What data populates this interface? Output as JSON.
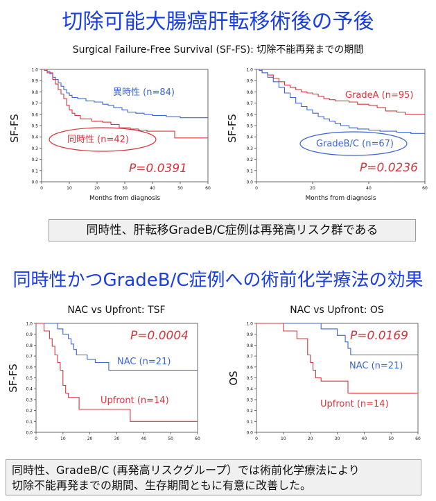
{
  "headings": {
    "main_title": "切除可能大腸癌肝転移術後の予後",
    "main_subtitle": "Surgical Failure-Free Survival (SF-FS): 切除不能再発までの期間",
    "section_title": "同時性かつGradeB/C症例への術前化学療法の効果"
  },
  "notes": {
    "note1": "同時性、肝転移GradeB/C症例は再発高リスク群である",
    "note2_line1": "同時性、GradeB/C (再発高リスクグループ）では術前化学療法により",
    "note2_line2": "切除不能再発までの期間、生存期間ともに有意に改善した。"
  },
  "colors": {
    "blue": "#3a64d8",
    "red": "#d8343c",
    "title_blue": "#1a3fe0"
  },
  "chart_data": [
    {
      "type": "line",
      "step": true,
      "title": "",
      "xlabel": "Months from diagnosis",
      "ylabel": "SF-FS",
      "xlim": [
        0,
        60
      ],
      "ylim": [
        0,
        1
      ],
      "xticks": [
        0,
        10,
        20,
        30,
        40,
        50,
        60
      ],
      "yticks": [
        0.0,
        0.1,
        0.2,
        0.3,
        0.4,
        0.5,
        0.6,
        0.7,
        0.8,
        0.9,
        1.0
      ],
      "pvalue": "P=0.0391",
      "series": [
        {
          "name": "異時性 (n=84)",
          "color": "#3a64d8",
          "circled": false,
          "points": [
            [
              0,
              1.0
            ],
            [
              1,
              0.99
            ],
            [
              2,
              0.98
            ],
            [
              3,
              0.96
            ],
            [
              4,
              0.93
            ],
            [
              5,
              0.91
            ],
            [
              6,
              0.88
            ],
            [
              7,
              0.85
            ],
            [
              8,
              0.82
            ],
            [
              9,
              0.79
            ],
            [
              10,
              0.77
            ],
            [
              11,
              0.75
            ],
            [
              13,
              0.74
            ],
            [
              16,
              0.72
            ],
            [
              19,
              0.71
            ],
            [
              22,
              0.69
            ],
            [
              24,
              0.68
            ],
            [
              26,
              0.66
            ],
            [
              29,
              0.64
            ],
            [
              31,
              0.62
            ],
            [
              34,
              0.61
            ],
            [
              37,
              0.6
            ],
            [
              40,
              0.59
            ],
            [
              45,
              0.58
            ],
            [
              50,
              0.57
            ],
            [
              60,
              0.57
            ]
          ]
        },
        {
          "name": "同時性 (n=42)",
          "color": "#d8343c",
          "circled": true,
          "points": [
            [
              0,
              1.0
            ],
            [
              2,
              0.97
            ],
            [
              4,
              0.91
            ],
            [
              5,
              0.87
            ],
            [
              6,
              0.82
            ],
            [
              7,
              0.78
            ],
            [
              8,
              0.74
            ],
            [
              9,
              0.68
            ],
            [
              10,
              0.64
            ],
            [
              11,
              0.61
            ],
            [
              12,
              0.59
            ],
            [
              14,
              0.56
            ],
            [
              18,
              0.54
            ],
            [
              22,
              0.53
            ],
            [
              25,
              0.51
            ],
            [
              28,
              0.48
            ],
            [
              32,
              0.47
            ],
            [
              35,
              0.46
            ],
            [
              38,
              0.45
            ],
            [
              47,
              0.45
            ],
            [
              48,
              0.39
            ],
            [
              60,
              0.39
            ]
          ]
        }
      ]
    },
    {
      "type": "line",
      "step": true,
      "title": "",
      "xlabel": "Months from diagnosis",
      "ylabel": "SF-FS",
      "xlim": [
        0,
        60
      ],
      "ylim": [
        0,
        1
      ],
      "xticks": [
        0,
        20,
        40,
        60
      ],
      "yticks": [
        0.0,
        0.1,
        0.2,
        0.3,
        0.4,
        0.5,
        0.6,
        0.7,
        0.8,
        0.9,
        1.0
      ],
      "pvalue": "P=0.0236",
      "series": [
        {
          "name": "GradeA (n=95)",
          "color": "#d8343c",
          "circled": false,
          "points": [
            [
              0,
              1.0
            ],
            [
              1,
              0.99
            ],
            [
              2,
              0.97
            ],
            [
              4,
              0.95
            ],
            [
              6,
              0.92
            ],
            [
              8,
              0.89
            ],
            [
              10,
              0.86
            ],
            [
              12,
              0.84
            ],
            [
              14,
              0.82
            ],
            [
              16,
              0.8
            ],
            [
              18,
              0.79
            ],
            [
              20,
              0.78
            ],
            [
              22,
              0.76
            ],
            [
              24,
              0.74
            ],
            [
              26,
              0.73
            ],
            [
              28,
              0.72
            ],
            [
              30,
              0.72
            ],
            [
              33,
              0.71
            ],
            [
              36,
              0.69
            ],
            [
              40,
              0.68
            ],
            [
              43,
              0.66
            ],
            [
              46,
              0.63
            ],
            [
              50,
              0.62
            ],
            [
              53,
              0.6
            ],
            [
              60,
              0.6
            ]
          ]
        },
        {
          "name": "GradeB/C (n=67)",
          "color": "#3a64d8",
          "circled": true,
          "points": [
            [
              0,
              1.0
            ],
            [
              2,
              0.97
            ],
            [
              4,
              0.93
            ],
            [
              6,
              0.89
            ],
            [
              8,
              0.84
            ],
            [
              10,
              0.79
            ],
            [
              12,
              0.75
            ],
            [
              14,
              0.7
            ],
            [
              16,
              0.67
            ],
            [
              18,
              0.64
            ],
            [
              20,
              0.61
            ],
            [
              22,
              0.58
            ],
            [
              24,
              0.56
            ],
            [
              26,
              0.54
            ],
            [
              28,
              0.52
            ],
            [
              30,
              0.5
            ],
            [
              33,
              0.48
            ],
            [
              36,
              0.47
            ],
            [
              40,
              0.46
            ],
            [
              44,
              0.45
            ],
            [
              50,
              0.44
            ],
            [
              55,
              0.43
            ],
            [
              60,
              0.43
            ]
          ]
        }
      ]
    },
    {
      "type": "line",
      "step": true,
      "title": "NAC vs Upfront: TSF",
      "xlabel": "",
      "ylabel": "SF-FS",
      "xlim": [
        0,
        60
      ],
      "ylim": [
        0,
        1
      ],
      "xticks": [
        0,
        10,
        20,
        30,
        40,
        50,
        60
      ],
      "yticks": [
        0.0,
        0.1,
        0.2,
        0.3,
        0.4,
        0.5,
        0.6,
        0.7,
        0.8,
        0.9,
        1.0
      ],
      "pvalue": "P=0.0004",
      "series": [
        {
          "name": "NAC (n=21)",
          "color": "#3a64d8",
          "circled": false,
          "points": [
            [
              0,
              1.0
            ],
            [
              8,
              0.95
            ],
            [
              10,
              0.9
            ],
            [
              12,
              0.86
            ],
            [
              13,
              0.81
            ],
            [
              14,
              0.76
            ],
            [
              15,
              0.71
            ],
            [
              19,
              0.67
            ],
            [
              22,
              0.64
            ],
            [
              27,
              0.57
            ],
            [
              60,
              0.57
            ]
          ]
        },
        {
          "name": "Upfront (n=14)",
          "color": "#d8343c",
          "circled": false,
          "points": [
            [
              0,
              1.0
            ],
            [
              3,
              0.93
            ],
            [
              5,
              0.86
            ],
            [
              6,
              0.79
            ],
            [
              7,
              0.71
            ],
            [
              8,
              0.64
            ],
            [
              9,
              0.57
            ],
            [
              10,
              0.43
            ],
            [
              11,
              0.36
            ],
            [
              12,
              0.32
            ],
            [
              16,
              0.21
            ],
            [
              35,
              0.1
            ],
            [
              60,
              0.1
            ]
          ]
        }
      ]
    },
    {
      "type": "line",
      "step": true,
      "title": "NAC vs Upfront: OS",
      "xlabel": "",
      "ylabel": "OS",
      "xlim": [
        0,
        60
      ],
      "ylim": [
        0,
        1
      ],
      "xticks": [
        0,
        10,
        20,
        30,
        40,
        50,
        60
      ],
      "yticks": [
        0.0,
        0.1,
        0.2,
        0.3,
        0.4,
        0.5,
        0.6,
        0.7,
        0.8,
        0.9,
        1.0
      ],
      "pvalue": "P=0.0169",
      "series": [
        {
          "name": "NAC (n=21)",
          "color": "#3a64d8",
          "circled": false,
          "points": [
            [
              0,
              1.0
            ],
            [
              24,
              0.95
            ],
            [
              30,
              0.89
            ],
            [
              33,
              0.83
            ],
            [
              34,
              0.77
            ],
            [
              35,
              0.71
            ],
            [
              60,
              0.71
            ]
          ]
        },
        {
          "name": "Upfront (n=14)",
          "color": "#d8343c",
          "circled": false,
          "points": [
            [
              0,
              1.0
            ],
            [
              10,
              0.93
            ],
            [
              15,
              0.86
            ],
            [
              19,
              0.71
            ],
            [
              20,
              0.64
            ],
            [
              21,
              0.57
            ],
            [
              22,
              0.5
            ],
            [
              24,
              0.47
            ],
            [
              34,
              0.36
            ],
            [
              60,
              0.36
            ]
          ]
        }
      ]
    }
  ]
}
